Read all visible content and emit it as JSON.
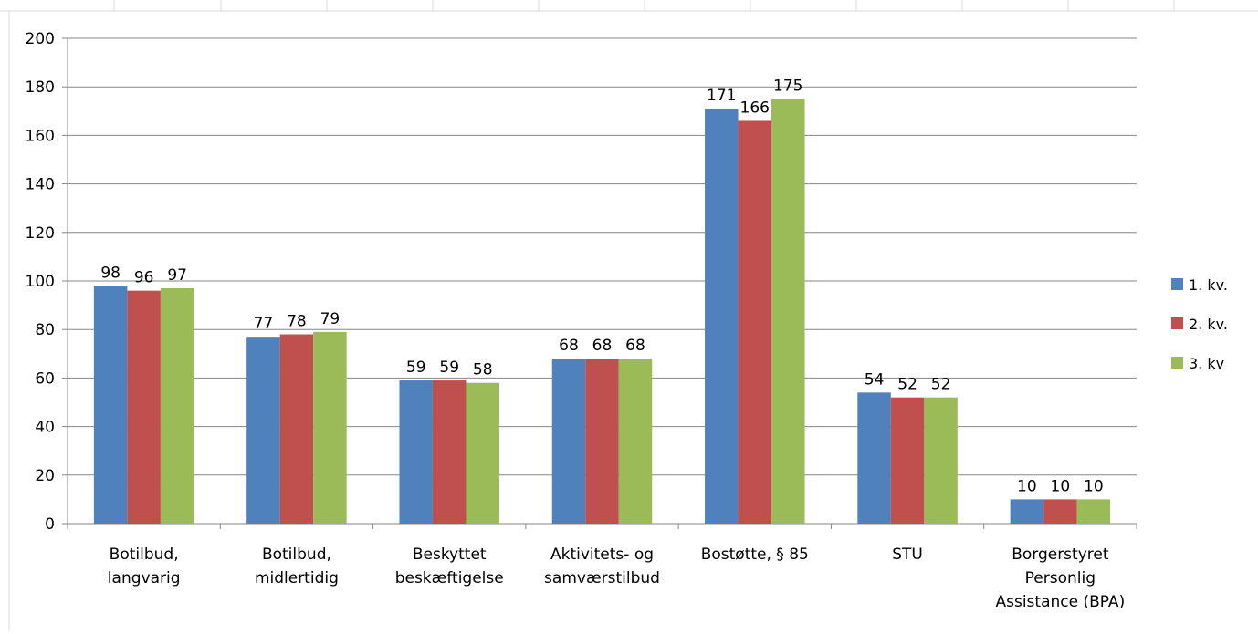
{
  "chart_data": {
    "type": "bar",
    "categories": [
      [
        "Botilbud,",
        "langvarig"
      ],
      [
        "Botilbud,",
        "midlertidig"
      ],
      [
        "Beskyttet",
        "beskæftigelse"
      ],
      [
        "Aktivitets- og",
        "samværstilbud"
      ],
      [
        "Bostøtte, § 85"
      ],
      [
        "STU"
      ],
      [
        "Borgerstyret",
        "Personlig",
        "Assistance (BPA)"
      ]
    ],
    "series": [
      {
        "name": "1. kv.",
        "color": "#4f81bd",
        "values": [
          98,
          77,
          59,
          68,
          171,
          54,
          10
        ]
      },
      {
        "name": "2. kv.",
        "color": "#c0504d",
        "values": [
          96,
          78,
          59,
          68,
          166,
          52,
          10
        ]
      },
      {
        "name": "3. kv",
        "color": "#9bbb59",
        "values": [
          97,
          79,
          58,
          68,
          175,
          52,
          10
        ]
      }
    ],
    "ylim": [
      0,
      200
    ],
    "yticks": [
      0,
      20,
      40,
      60,
      80,
      100,
      120,
      140,
      160,
      180,
      200
    ],
    "grid": true,
    "legend_position": "right",
    "data_labels": true
  }
}
